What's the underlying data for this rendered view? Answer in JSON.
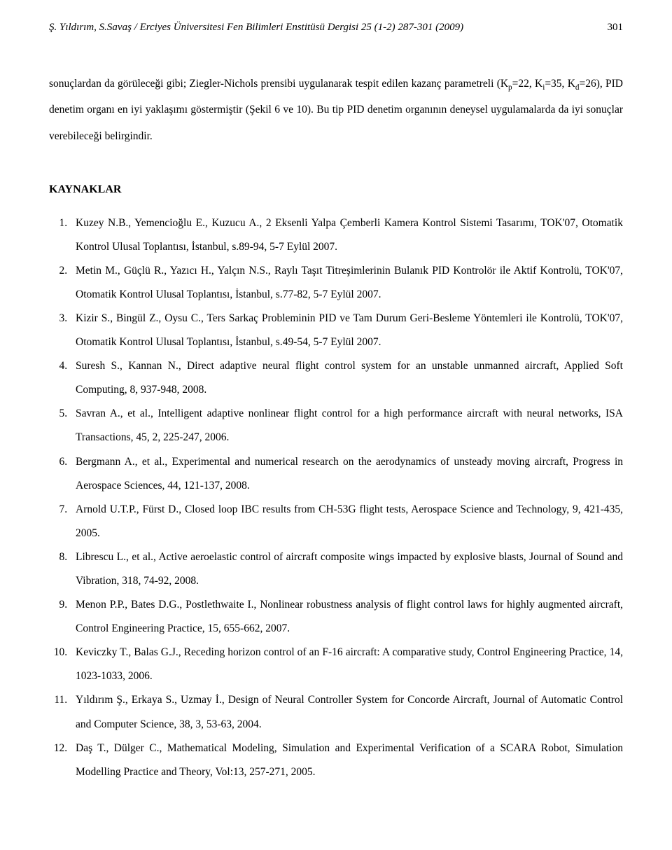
{
  "header": {
    "citation": "Ş. Yıldırım, S.Savaş / Erciyes Üniversitesi Fen Bilimleri Enstitüsü Dergisi 25 (1-2) 287-301 (2009)",
    "page_number": "301"
  },
  "body_paragraph": {
    "html": "sonuçlardan da görüleceği gibi; Ziegler-Nichols prensibi uygulanarak tespit edilen kazanç parametreli (K<span class=\"sub\">p</span>=22, K<span class=\"sub\">i</span>=35, K<span class=\"sub\">d</span>=26), PID denetim organı en iyi yaklaşımı göstermiştir (Şekil 6 ve 10). Bu tip PID denetim organının deneysel uygulamalarda da iyi sonuçlar verebileceği belirgindir."
  },
  "references": {
    "heading": "KAYNAKLAR",
    "items": [
      "Kuzey N.B., Yemencioğlu E., Kuzucu A., 2 Eksenli Yalpa Çemberli Kamera Kontrol Sistemi Tasarımı, TOK'07, Otomatik Kontrol Ulusal Toplantısı, İstanbul, s.89-94, 5-7 Eylül 2007.",
      "Metin M., Güçlü R., Yazıcı H., Yalçın N.S., Raylı Taşıt Titreşimlerinin Bulanık PID Kontrolör ile Aktif Kontrolü, TOK'07, Otomatik Kontrol Ulusal Toplantısı, İstanbul, s.77-82, 5-7 Eylül 2007.",
      "Kizir S., Bingül Z., Oysu C., Ters Sarkaç Probleminin PID ve Tam Durum Geri-Besleme Yöntemleri ile Kontrolü, TOK'07, Otomatik Kontrol Ulusal Toplantısı, İstanbul, s.49-54, 5-7 Eylül 2007.",
      "Suresh S., Kannan N., Direct adaptive neural flight control system for an unstable unmanned aircraft, Applied Soft Computing, 8, 937-948, 2008.",
      "Savran A., et al., Intelligent adaptive nonlinear flight control for a high performance aircraft with neural networks, ISA Transactions, 45, 2, 225-247, 2006.",
      "Bergmann A., et al., Experimental and numerical research on the aerodynamics of unsteady moving aircraft, Progress in Aerospace Sciences, 44, 121-137, 2008.",
      "Arnold U.T.P., Fürst D., Closed loop IBC results from CH-53G flight tests, Aerospace Science and Technology, 9, 421-435, 2005.",
      "Librescu L., et al., Active aeroelastic control of aircraft composite wings impacted by explosive blasts, Journal of Sound and Vibration, 318, 74-92, 2008.",
      "Menon P.P., Bates D.G., Postlethwaite I., Nonlinear robustness analysis of flight control laws for highly augmented aircraft, Control Engineering Practice, 15, 655-662, 2007.",
      "Keviczky T., Balas G.J., Receding horizon control of an F-16 aircraft: A comparative study, Control Engineering Practice, 14, 1023-1033, 2006.",
      "Yıldırım Ş., Erkaya S., Uzmay İ., Design of Neural Controller System for Concorde Aircraft, Journal of Automatic Control and Computer Science, 38, 3, 53-63, 2004.",
      "Daş T., Dülger C., Mathematical Modeling, Simulation and Experimental Verification of a SCARA Robot, Simulation Modelling Practice and Theory, Vol:13, 257-271, 2005."
    ]
  }
}
